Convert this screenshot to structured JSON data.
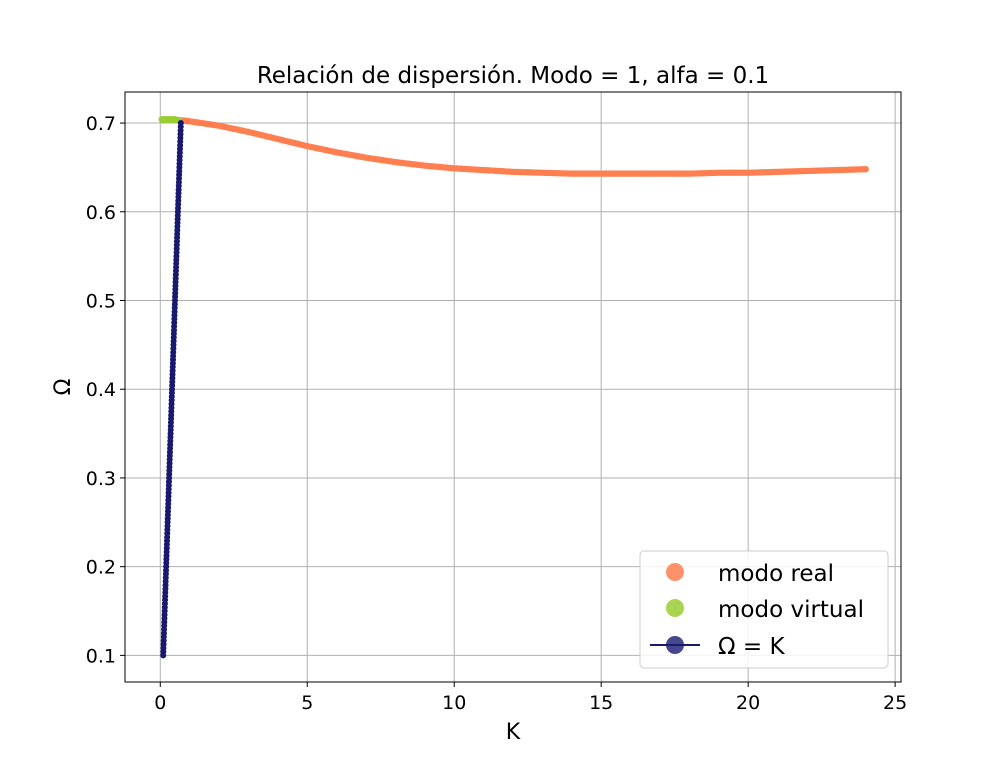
{
  "chart_data": {
    "type": "scatter",
    "title": "Relación de dispersión. Modo = 1, alfa = 0.1",
    "xlabel": "K",
    "ylabel": "Ω",
    "xlim": [
      -1.2,
      25.2
    ],
    "ylim": [
      0.07,
      0.735
    ],
    "xticks": [
      0,
      5,
      10,
      15,
      20,
      25
    ],
    "yticks": [
      0.1,
      0.2,
      0.3,
      0.4,
      0.5,
      0.6,
      0.7
    ],
    "xtick_labels": [
      "0",
      "5",
      "10",
      "15",
      "20",
      "25"
    ],
    "ytick_labels": [
      "0.1",
      "0.2",
      "0.3",
      "0.4",
      "0.5",
      "0.6",
      "0.7"
    ],
    "grid": true,
    "legend_position": "lower-right",
    "series": [
      {
        "name": "modo real",
        "color": "#ff7f50",
        "marker": "circle",
        "x": [
          0.7,
          1,
          2,
          3,
          4,
          5,
          6,
          7,
          8,
          9,
          10,
          11,
          12,
          13,
          14,
          15,
          16,
          17,
          18,
          19,
          20,
          21,
          22,
          23,
          24
        ],
        "y": [
          0.703,
          0.702,
          0.697,
          0.69,
          0.682,
          0.674,
          0.667,
          0.661,
          0.656,
          0.652,
          0.649,
          0.647,
          0.645,
          0.644,
          0.643,
          0.643,
          0.643,
          0.643,
          0.643,
          0.644,
          0.644,
          0.645,
          0.646,
          0.647,
          0.648
        ]
      },
      {
        "name": "modo virtual",
        "color": "#9acd32",
        "marker": "circle",
        "x": [
          0.05,
          0.2,
          0.35,
          0.5,
          0.65
        ],
        "y": [
          0.704,
          0.704,
          0.704,
          0.704,
          0.703
        ]
      },
      {
        "name": "Ω = K",
        "color": "#191970",
        "marker": "circle-line",
        "x": [
          0.1,
          0.2,
          0.3,
          0.4,
          0.5,
          0.6,
          0.7
        ],
        "y": [
          0.1,
          0.2,
          0.3,
          0.4,
          0.5,
          0.6,
          0.7
        ]
      }
    ]
  }
}
